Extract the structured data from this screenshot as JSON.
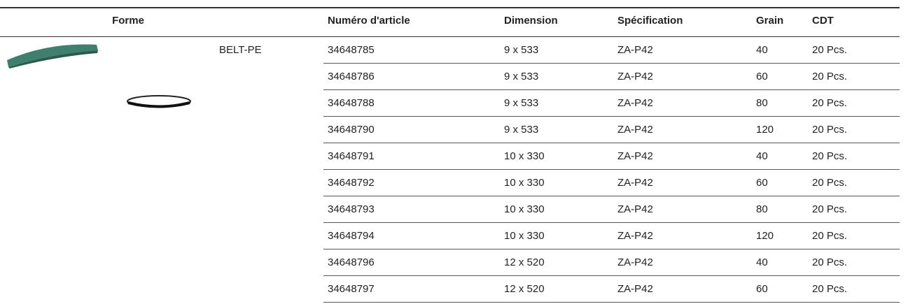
{
  "header": {
    "columns": [
      "Forme",
      "Numéro d'article",
      "Dimension",
      "Spécification",
      "Grain",
      "CDT"
    ]
  },
  "shape": "BELT-PE",
  "table": {
    "rows": [
      [
        "34648785",
        "9 x 533",
        "ZA-P42",
        "40",
        "20 Pcs."
      ],
      [
        "34648786",
        "9 x 533",
        "ZA-P42",
        "60",
        "20 Pcs."
      ],
      [
        "34648788",
        "9 x 533",
        "ZA-P42",
        "80",
        "20 Pcs."
      ],
      [
        "34648790",
        "9 x 533",
        "ZA-P42",
        "120",
        "20 Pcs."
      ],
      [
        "34648791",
        "10 x 330",
        "ZA-P42",
        "40",
        "20 Pcs."
      ],
      [
        "34648792",
        "10 x 330",
        "ZA-P42",
        "60",
        "20 Pcs."
      ],
      [
        "34648793",
        "10 x 330",
        "ZA-P42",
        "80",
        "20 Pcs."
      ],
      [
        "34648794",
        "10 x 330",
        "ZA-P42",
        "120",
        "20 Pcs."
      ],
      [
        "34648796",
        "12 x 520",
        "ZA-P42",
        "40",
        "20 Pcs."
      ],
      [
        "34648797",
        "12 x 520",
        "ZA-P42",
        "60",
        "20 Pcs."
      ]
    ]
  }
}
